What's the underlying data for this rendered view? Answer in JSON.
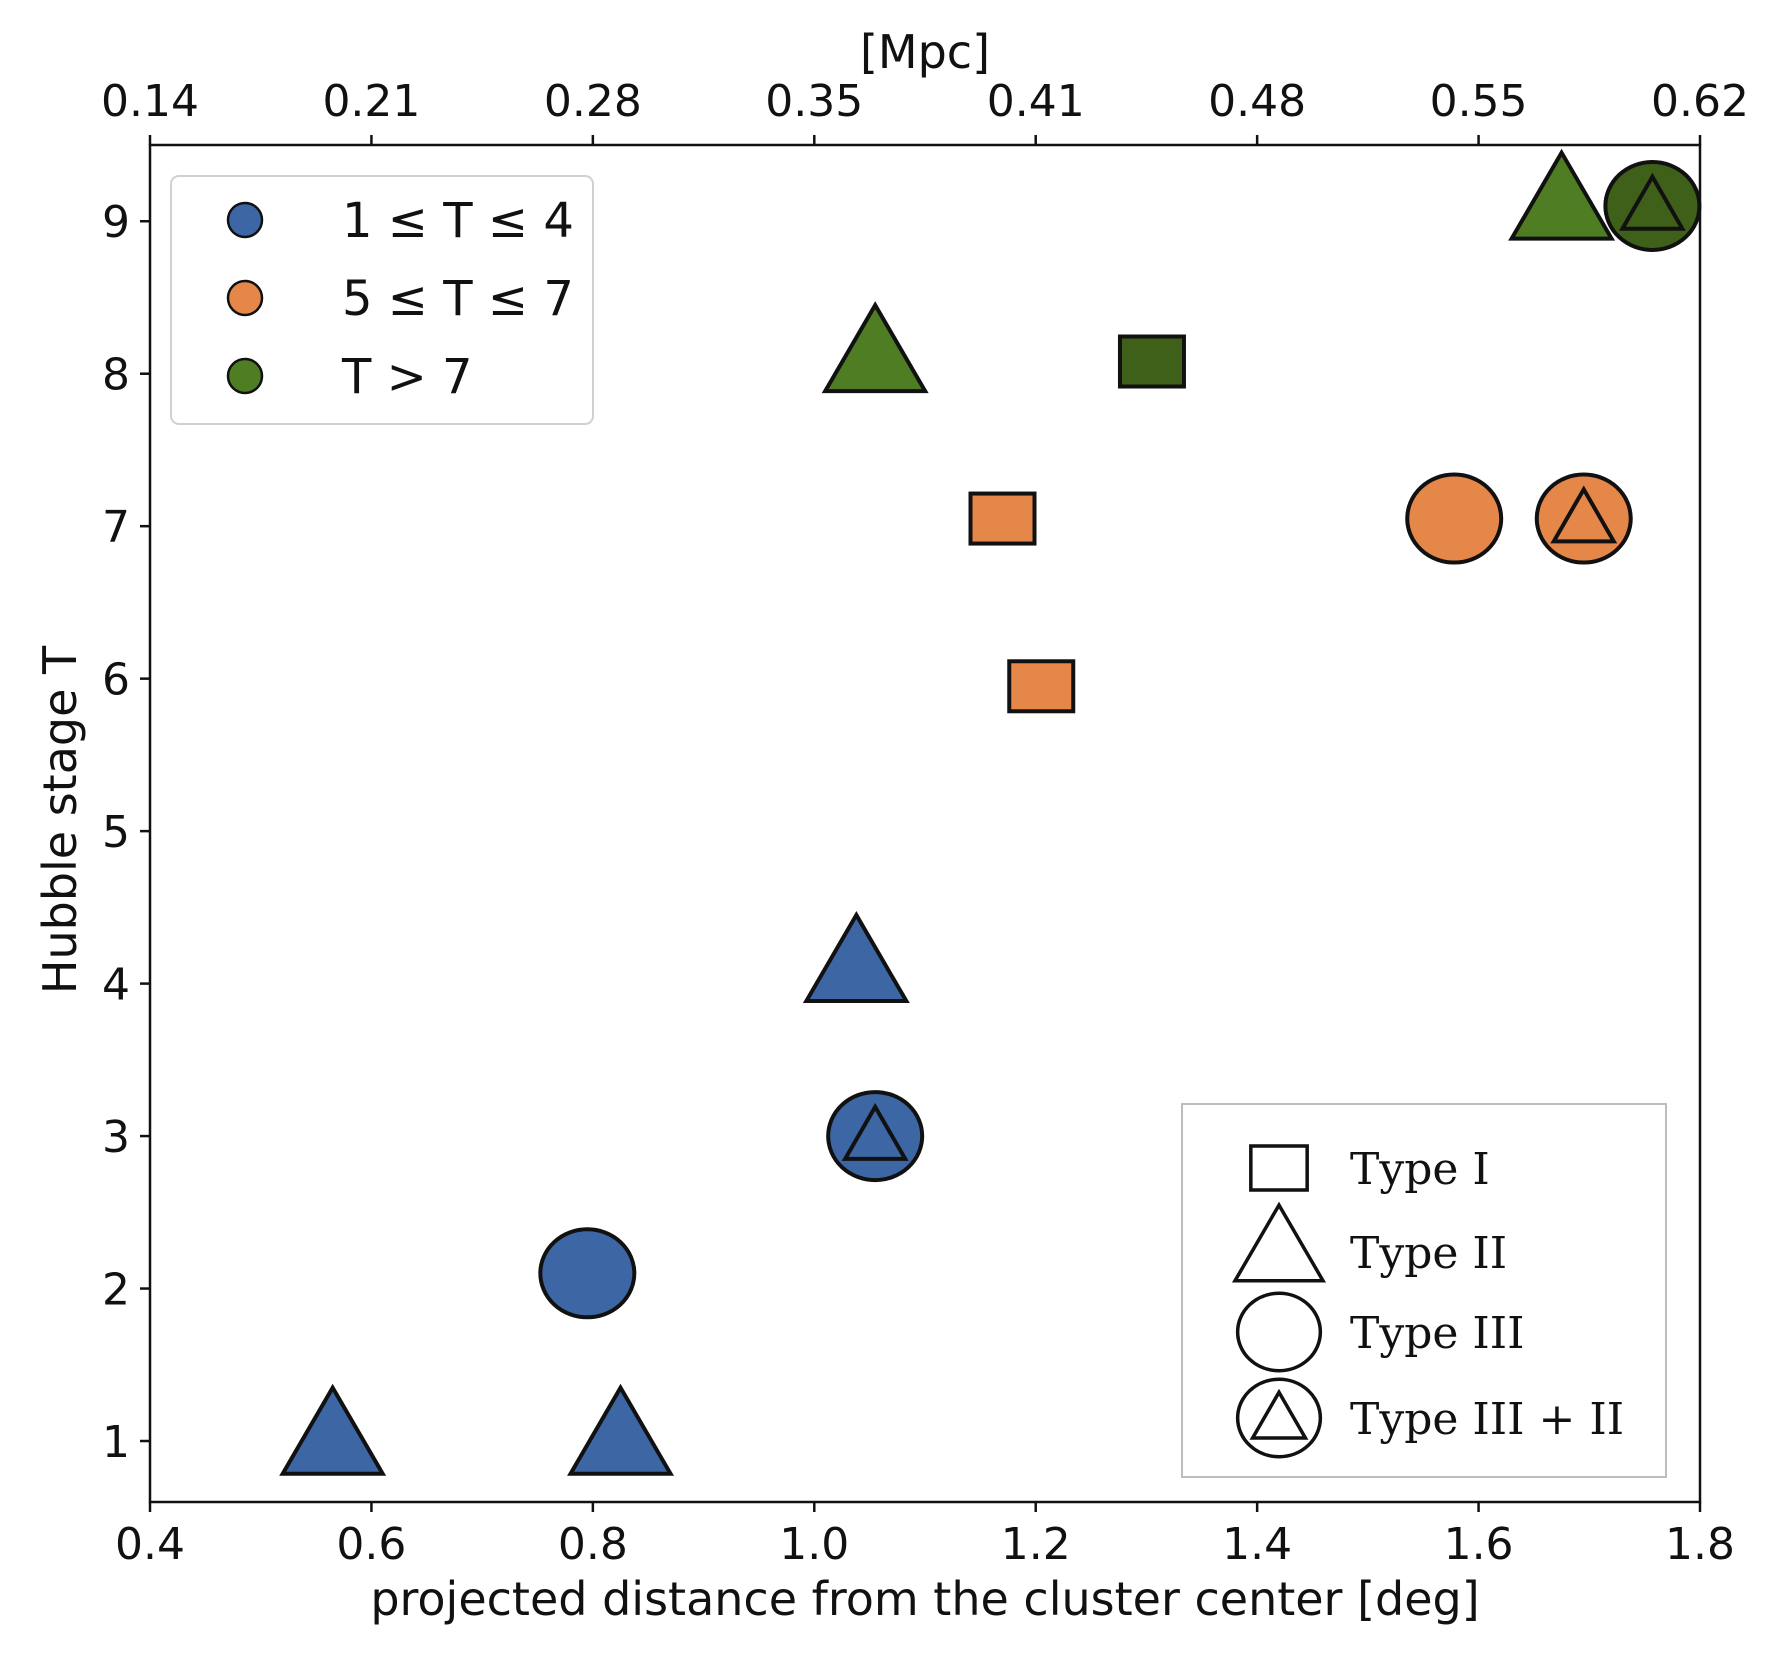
{
  "chart_data": {
    "type": "scatter",
    "xlabel": "projected distance from the cluster center [deg]",
    "ylabel": "Hubble stage T",
    "xlim": [
      0.4,
      1.8
    ],
    "ylim": [
      0.6,
      9.5
    ],
    "x_ticks": [
      "0.4",
      "0.6",
      "0.8",
      "1.0",
      "1.2",
      "1.4",
      "1.6",
      "1.8"
    ],
    "x_tick_values": [
      0.4,
      0.6,
      0.8,
      1.0,
      1.2,
      1.4,
      1.6,
      1.8
    ],
    "y_ticks": [
      "1",
      "2",
      "3",
      "4",
      "5",
      "6",
      "7",
      "8",
      "9"
    ],
    "y_tick_values": [
      1,
      2,
      3,
      4,
      5,
      6,
      7,
      8,
      9
    ],
    "top_axis": {
      "label": "[Mpc]",
      "ticks": [
        "0.14",
        "0.21",
        "0.28",
        "0.35",
        "0.41",
        "0.48",
        "0.55",
        "0.62"
      ],
      "positions_deg": [
        0.4,
        0.6,
        0.8,
        1.0,
        1.2,
        1.4,
        1.6,
        1.8
      ]
    },
    "colors": {
      "blue": "#3d66a5",
      "orange": "#e6874a",
      "green": "#4f7d24",
      "dark_green": "#3f6018",
      "outline": "#111111"
    },
    "color_legend": [
      {
        "label": "1 ≤ T ≤ 4",
        "color_key": "blue"
      },
      {
        "label": "5 ≤ T ≤ 7",
        "color_key": "orange"
      },
      {
        "label": "T > 7",
        "color_key": "green"
      }
    ],
    "shape_legend": [
      {
        "label": "Type I",
        "shape": "square"
      },
      {
        "label": "Type II",
        "shape": "triangle"
      },
      {
        "label": "Type III",
        "shape": "circle"
      },
      {
        "label": "Type III + II",
        "shape": "circle-triangle"
      }
    ],
    "points": [
      {
        "x": 0.565,
        "y": 1.0,
        "shape": "triangle",
        "color_key": "blue"
      },
      {
        "x": 0.825,
        "y": 1.0,
        "shape": "triangle",
        "color_key": "blue"
      },
      {
        "x": 0.795,
        "y": 2.1,
        "shape": "circle",
        "color_key": "blue"
      },
      {
        "x": 1.055,
        "y": 3.0,
        "shape": "circle-triangle",
        "color_key": "blue"
      },
      {
        "x": 1.038,
        "y": 4.1,
        "shape": "triangle",
        "color_key": "blue"
      },
      {
        "x": 1.205,
        "y": 5.95,
        "shape": "square",
        "color_key": "orange"
      },
      {
        "x": 1.17,
        "y": 7.05,
        "shape": "square",
        "color_key": "orange"
      },
      {
        "x": 1.578,
        "y": 7.05,
        "shape": "circle",
        "color_key": "orange"
      },
      {
        "x": 1.695,
        "y": 7.05,
        "shape": "circle-triangle",
        "color_key": "orange"
      },
      {
        "x": 1.055,
        "y": 8.1,
        "shape": "triangle",
        "color_key": "green"
      },
      {
        "x": 1.305,
        "y": 8.08,
        "shape": "square",
        "color_key": "dark_green"
      },
      {
        "x": 1.675,
        "y": 9.1,
        "shape": "triangle",
        "color_key": "green"
      },
      {
        "x": 1.757,
        "y": 9.1,
        "shape": "circle-triangle",
        "color_key": "dark_green"
      }
    ]
  }
}
